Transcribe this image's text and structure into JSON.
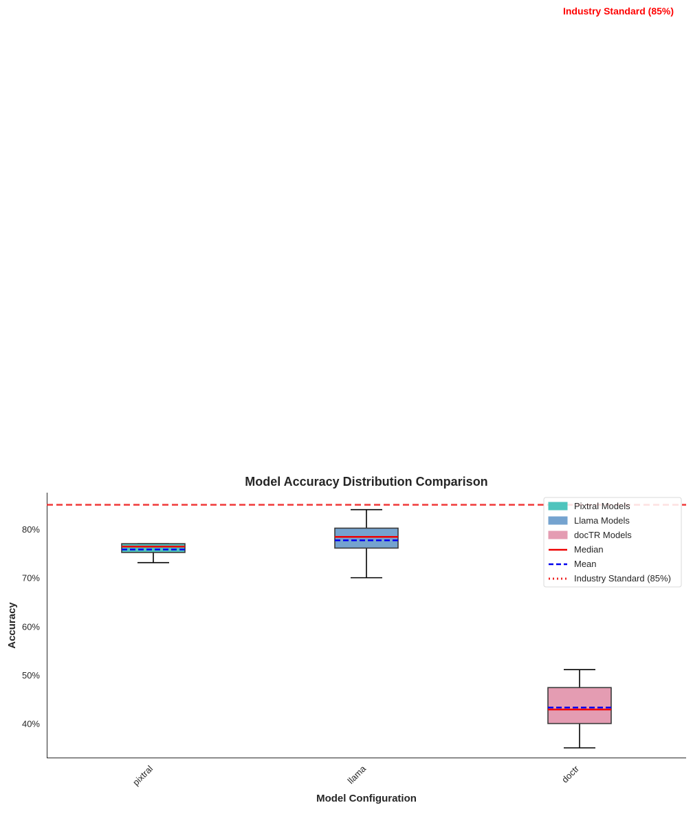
{
  "chart_data": {
    "type": "box",
    "title": "Model Accuracy Distribution Comparison",
    "xlabel": "Model Configuration",
    "ylabel": "Accuracy",
    "ylim": [
      0.33,
      0.875
    ],
    "yticks": [
      0.4,
      0.5,
      0.6,
      0.7,
      0.8
    ],
    "ytick_labels": [
      "40%",
      "50%",
      "60%",
      "70%",
      "80%"
    ],
    "grid": false,
    "categories": [
      "pixtral",
      "llama",
      "doctr"
    ],
    "boxes": [
      {
        "category": "pixtral",
        "group": "Pixtral Models",
        "whisker_low": 0.731,
        "q1": 0.752,
        "median": 0.764,
        "mean": 0.758,
        "q3": 0.77,
        "whisker_high": 0.77,
        "color": "#4ec4bd"
      },
      {
        "category": "llama",
        "group": "Llama Models",
        "whisker_low": 0.7,
        "q1": 0.761,
        "median": 0.784,
        "mean": 0.777,
        "q3": 0.802,
        "whisker_high": 0.84,
        "color": "#75a3cf"
      },
      {
        "category": "doctr",
        "group": "docTR Models",
        "whisker_low": 0.35,
        "q1": 0.4,
        "median": 0.429,
        "mean": 0.433,
        "q3": 0.474,
        "whisker_high": 0.511,
        "color": "#e49cb2"
      }
    ],
    "reference_line": {
      "value": 0.85,
      "label": "Industry Standard (85%)",
      "color": "#ee2222"
    },
    "legend": {
      "placement": "upper-right",
      "entries": [
        {
          "label": "Pixtral Models",
          "kind": "patch",
          "color": "#4ec4bd"
        },
        {
          "label": "Llama Models",
          "kind": "patch",
          "color": "#75a3cf"
        },
        {
          "label": "docTR Models",
          "kind": "patch",
          "color": "#e49cb2"
        },
        {
          "label": "Median",
          "kind": "line",
          "color": "#ee0000"
        },
        {
          "label": "Mean",
          "kind": "dashed",
          "color": "#0000ee"
        },
        {
          "label": "Industry Standard (85%)",
          "kind": "dotted",
          "color": "#ee2222"
        }
      ]
    },
    "colors": {
      "median": "#ee0000",
      "mean": "#0000ee",
      "reference": "#ee2222",
      "annotation": "#ff0000"
    }
  }
}
